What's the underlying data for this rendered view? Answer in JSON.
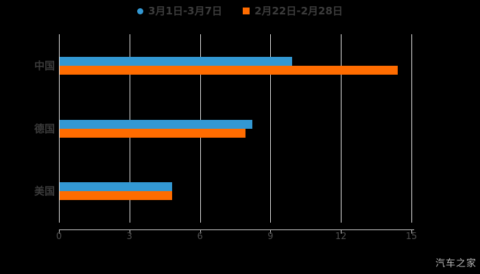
{
  "legend": {
    "items": [
      {
        "label": "3月1日-3月7日",
        "color": "#3398d3",
        "marker": "circle"
      },
      {
        "label": "2月22日-2月28日",
        "color": "#ff6c00",
        "marker": "square"
      }
    ]
  },
  "chart_data": {
    "type": "bar",
    "orientation": "horizontal",
    "title": "",
    "categories": [
      "中国",
      "德国",
      "美国"
    ],
    "series": [
      {
        "name": "3月1日-3月7日",
        "color": "#3398d3",
        "values": [
          9.9,
          8.2,
          4.8
        ]
      },
      {
        "name": "2月22日-2月28日",
        "color": "#ff6c00",
        "values": [
          14.4,
          7.9,
          4.8
        ]
      }
    ],
    "xlim": [
      0,
      15
    ],
    "x_ticks": [
      "0",
      "3",
      "6",
      "9",
      "12",
      "15"
    ],
    "grid": true,
    "legend_position": "top-center",
    "background": "#000000"
  },
  "watermark": "汽车之家"
}
